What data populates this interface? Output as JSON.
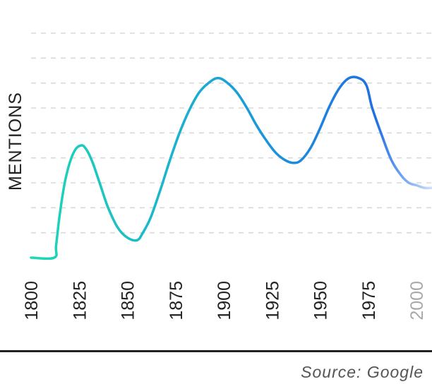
{
  "source_note": "Source: Google",
  "chart_data": {
    "type": "line",
    "title": "",
    "xlabel": "",
    "ylabel": "MENTIONS",
    "x_tick_labels": [
      "1800",
      "1825",
      "1850",
      "1875",
      "1900",
      "1925",
      "1950",
      "1975",
      "2000"
    ],
    "faded_tick_labels": [
      "2000"
    ],
    "xlim": [
      1800,
      2008
    ],
    "ylim": [
      0,
      9
    ],
    "y_tick_labels_shown": false,
    "grid": "horizontal dashed",
    "series": [
      {
        "x": [
          1800,
          1812,
          1813,
          1815,
          1818,
          1822,
          1826,
          1829,
          1832,
          1836,
          1840,
          1845,
          1850,
          1855,
          1858,
          1862,
          1867,
          1872,
          1877,
          1882,
          1887,
          1892,
          1897,
          1902,
          1907,
          1912,
          1917,
          1922,
          1927,
          1932,
          1936,
          1940,
          1945,
          1950,
          1955,
          1960,
          1965,
          1970,
          1974,
          1977,
          1982,
          1987,
          1992,
          1996,
          2000,
          2004,
          2008
        ],
        "y": [
          0,
          0,
          0.5,
          1.8,
          3.2,
          4.2,
          4.5,
          4.3,
          3.8,
          2.9,
          2.0,
          1.2,
          0.8,
          0.7,
          1.0,
          1.6,
          2.7,
          3.9,
          5.0,
          5.9,
          6.6,
          7.0,
          7.2,
          7.0,
          6.6,
          6.0,
          5.3,
          4.7,
          4.2,
          3.9,
          3.8,
          3.9,
          4.4,
          5.2,
          6.1,
          6.8,
          7.2,
          7.2,
          6.9,
          6.0,
          4.9,
          3.9,
          3.3,
          3.0,
          2.9,
          2.8,
          2.8
        ]
      }
    ],
    "colors": {
      "line_start": "#1fd8b4",
      "line_mid": "#18a9d4",
      "line_end": "#1f6fe3",
      "fade_end": "#cfe0fb"
    }
  }
}
